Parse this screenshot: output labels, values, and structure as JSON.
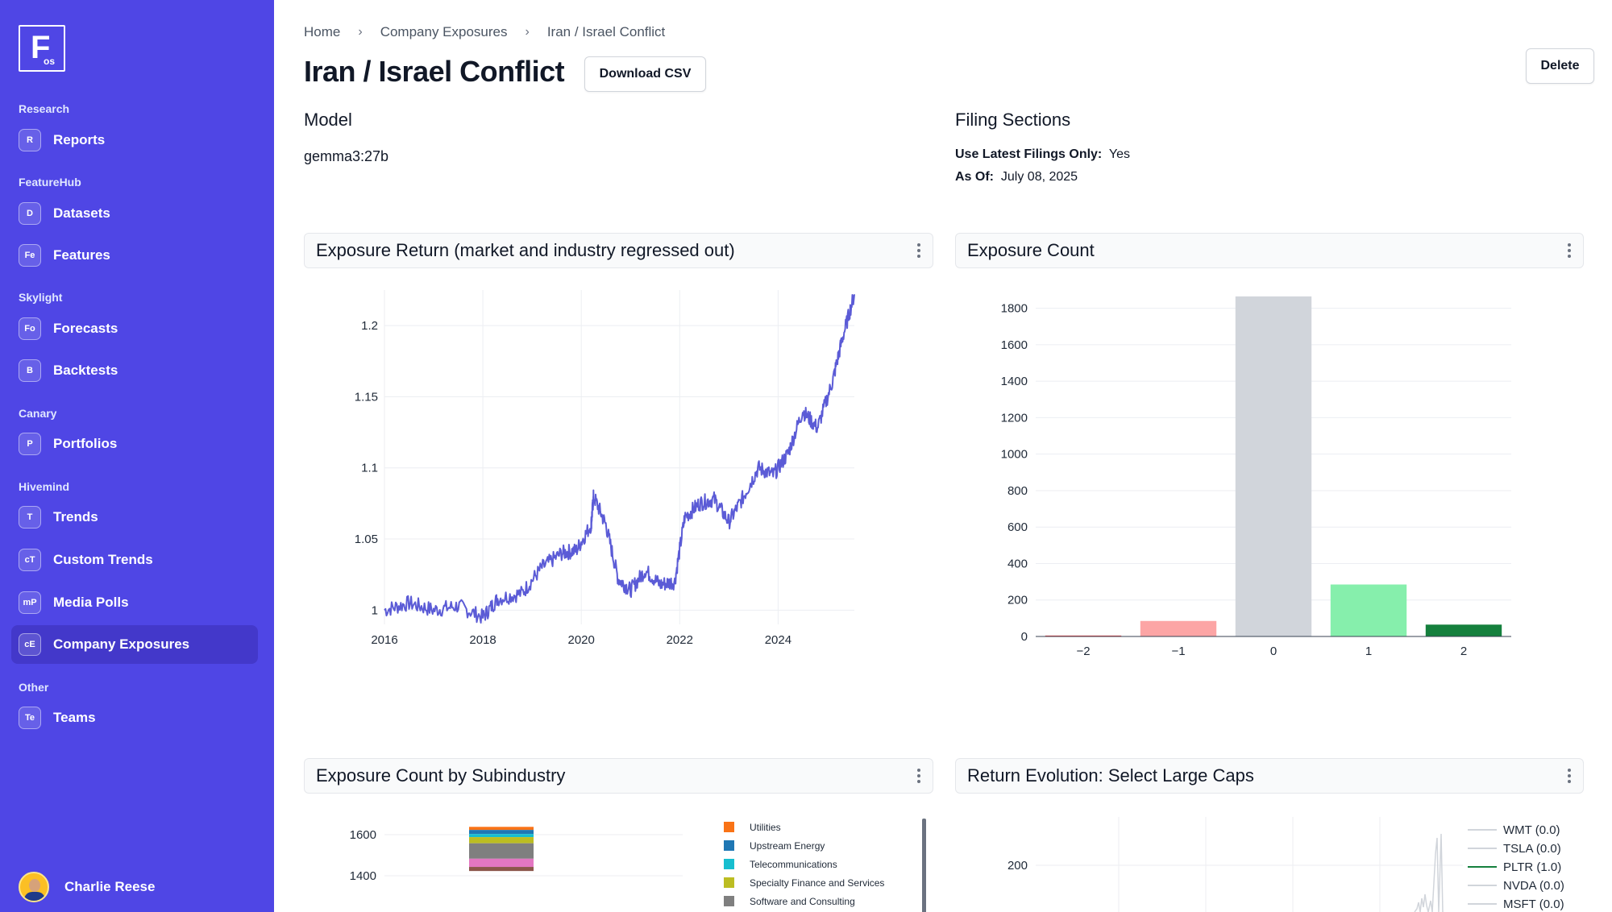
{
  "logo": {
    "letter": "F",
    "sub": "os"
  },
  "sidebar": {
    "sections": [
      {
        "title": "Research",
        "items": [
          {
            "badge": "R",
            "label": "Reports"
          }
        ]
      },
      {
        "title": "FeatureHub",
        "items": [
          {
            "badge": "D",
            "label": "Datasets"
          },
          {
            "badge": "Fe",
            "label": "Features"
          }
        ]
      },
      {
        "title": "Skylight",
        "items": [
          {
            "badge": "Fo",
            "label": "Forecasts"
          },
          {
            "badge": "B",
            "label": "Backtests"
          }
        ]
      },
      {
        "title": "Canary",
        "items": [
          {
            "badge": "P",
            "label": "Portfolios"
          }
        ]
      },
      {
        "title": "Hivemind",
        "items": [
          {
            "badge": "T",
            "label": "Trends"
          },
          {
            "badge": "cT",
            "label": "Custom Trends"
          },
          {
            "badge": "mP",
            "label": "Media Polls"
          },
          {
            "badge": "cE",
            "label": "Company Exposures"
          }
        ]
      },
      {
        "title": "Other",
        "items": [
          {
            "badge": "Te",
            "label": "Teams"
          }
        ]
      }
    ],
    "active_item": "Company Exposures",
    "user": {
      "name": "Charlie Reese"
    }
  },
  "breadcrumb": {
    "items": [
      "Home",
      "Company Exposures",
      "Iran / Israel Conflict"
    ],
    "separator": "›"
  },
  "header": {
    "title": "Iran / Israel Conflict",
    "download_label": "Download CSV",
    "delete_label": "Delete"
  },
  "model": {
    "heading": "Model",
    "value": "gemma3:27b"
  },
  "filing": {
    "heading": "Filing Sections",
    "latest_label": "Use Latest Filings Only:",
    "latest_value": "Yes",
    "asof_label": "As Of:",
    "asof_value": "July 08, 2025"
  },
  "cards": {
    "return": {
      "title": "Exposure Return (market and industry regressed out)"
    },
    "count": {
      "title": "Exposure Count"
    },
    "subindustry": {
      "title": "Exposure Count by Subindustry"
    },
    "evolution": {
      "title": "Return Evolution: Select Large Caps"
    }
  },
  "colors": {
    "accent": "#4f46e5",
    "line": "#5b5bd6"
  },
  "chart_data": [
    {
      "type": "line",
      "title": "Exposure Return (market and industry regressed out)",
      "xlabel": "",
      "ylabel": "",
      "x_ticks": [
        "2016",
        "2018",
        "2020",
        "2022",
        "2024"
      ],
      "y_ticks": [
        "1",
        "1.05",
        "1.1",
        "1.15",
        "1.2"
      ],
      "xlim": [
        2016,
        2025.55
      ],
      "ylim": [
        0.99,
        1.225
      ],
      "grid": true,
      "series": [
        {
          "x": [
            2016.0,
            2016.5,
            2017.0,
            2017.5,
            2018.0,
            2018.3,
            2018.8,
            2019.2,
            2019.6,
            2019.9,
            2020.2,
            2020.25,
            2020.5,
            2020.75,
            2021.0,
            2021.3,
            2021.6,
            2021.9,
            2022.1,
            2022.4,
            2022.7,
            2023.0,
            2023.3,
            2023.6,
            2023.9,
            2024.2,
            2024.5,
            2024.8,
            2025.1,
            2025.3,
            2025.55
          ],
          "y": [
            1.0,
            1.005,
            1.0,
            1.003,
            0.995,
            1.008,
            1.012,
            1.03,
            1.04,
            1.042,
            1.06,
            1.08,
            1.06,
            1.022,
            1.014,
            1.028,
            1.018,
            1.02,
            1.065,
            1.075,
            1.078,
            1.062,
            1.08,
            1.1,
            1.095,
            1.11,
            1.14,
            1.128,
            1.16,
            1.19,
            1.222
          ]
        }
      ]
    },
    {
      "type": "bar",
      "title": "Exposure Count",
      "categories": [
        "−2",
        "−1",
        "0",
        "1",
        "2"
      ],
      "values": [
        5,
        85,
        1865,
        285,
        65
      ],
      "colors": [
        "#ef4444",
        "#fca5a5",
        "#d1d5db",
        "#86efac",
        "#15803d"
      ],
      "y_ticks": [
        "0",
        "200",
        "400",
        "600",
        "800",
        "1000",
        "1200",
        "1400",
        "1600",
        "1800"
      ],
      "ylim": [
        0,
        1900
      ],
      "grid": true
    },
    {
      "type": "bar",
      "title": "Exposure Count by Subindustry",
      "y_ticks": [
        "1600",
        "1400"
      ],
      "ylim": [
        1340,
        1650
      ],
      "stacked": true,
      "segments": [
        {
          "name": "Utilities",
          "color": "#f97316",
          "value": 15
        },
        {
          "name": "Upstream Energy",
          "color": "#1f77b4",
          "value": 20
        },
        {
          "name": "Telecommunications",
          "color": "#17becf",
          "value": 15
        },
        {
          "name": "Specialty Finance and Services",
          "color": "#bcbd22",
          "value": 30
        },
        {
          "name": "Software and Consulting",
          "color": "#7f7f7f",
          "value": 75
        },
        {
          "name": "",
          "color": "#e377c2",
          "value": 40
        },
        {
          "name": "",
          "color": "#8c564b",
          "value": 20
        }
      ],
      "legend_position": "right"
    },
    {
      "type": "line",
      "title": "Return Evolution: Select Large Caps",
      "y_ticks": [
        "200"
      ],
      "legend_position": "right",
      "series": [
        {
          "name": "WMT (0.0)",
          "color": "#d1d5db"
        },
        {
          "name": "TSLA (0.0)",
          "color": "#d1d5db"
        },
        {
          "name": "PLTR (1.0)",
          "color": "#15803d"
        },
        {
          "name": "NVDA (0.0)",
          "color": "#d1d5db"
        },
        {
          "name": "MSFT (0.0)",
          "color": "#d1d5db"
        }
      ]
    }
  ]
}
